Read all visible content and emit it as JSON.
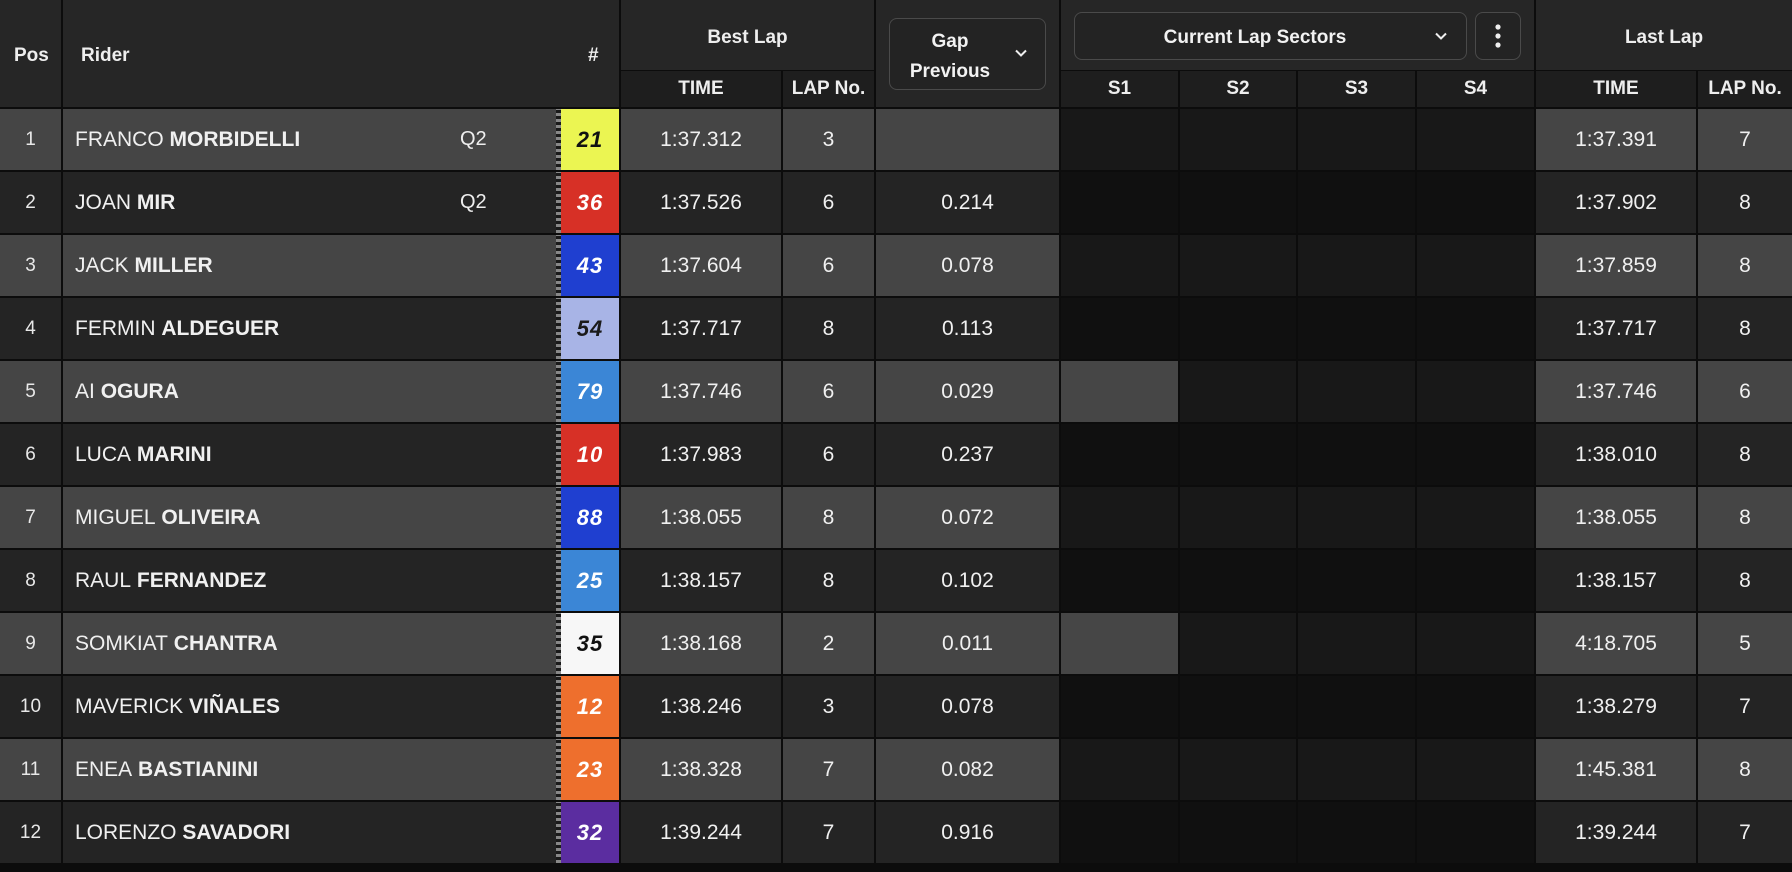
{
  "header": {
    "pos": "Pos",
    "rider": "Rider",
    "number": "#",
    "best_lap": "Best Lap",
    "best_lap_time": "TIME",
    "best_lap_no": "LAP No.",
    "gap_line1": "Gap",
    "gap_line2": "Previous",
    "sectors_dropdown": "Current Lap Sectors",
    "s1": "S1",
    "s2": "S2",
    "s3": "S3",
    "s4": "S4",
    "last_lap": "Last Lap",
    "last_lap_time": "TIME",
    "last_lap_no": "LAP No."
  },
  "icons": {
    "gap_dropdown": "chevron-down-icon",
    "sectors_dropdown": "chevron-down-icon",
    "more_menu": "kebab-menu-icon"
  },
  "colors": {
    "row_light": "#454545",
    "row_dark": "#242424",
    "sector_fill": "#464646"
  },
  "riders": [
    {
      "pos": "1",
      "first": "FRANCO",
      "last": "MORBIDELLI",
      "tag": "Q2",
      "num": "21",
      "num_bg": "#ebf552",
      "num_fg": "#111111",
      "best_time": "1:37.312",
      "best_lap": "3",
      "gap": "",
      "s1": false,
      "last_time": "1:37.391",
      "last_lap": "7"
    },
    {
      "pos": "2",
      "first": "JOAN",
      "last": "MIR",
      "tag": "Q2",
      "num": "36",
      "num_bg": "#d73026",
      "num_fg": "#ffffff",
      "best_time": "1:37.526",
      "best_lap": "6",
      "gap": "0.214",
      "s1": false,
      "last_time": "1:37.902",
      "last_lap": "8"
    },
    {
      "pos": "3",
      "first": "JACK",
      "last": "MILLER",
      "tag": "",
      "num": "43",
      "num_bg": "#1f3fd0",
      "num_fg": "#ffffff",
      "best_time": "1:37.604",
      "best_lap": "6",
      "gap": "0.078",
      "s1": false,
      "last_time": "1:37.859",
      "last_lap": "8"
    },
    {
      "pos": "4",
      "first": "FERMIN",
      "last": "ALDEGUER",
      "tag": "",
      "num": "54",
      "num_bg": "#a8b4e6",
      "num_fg": "#1a1a1a",
      "best_time": "1:37.717",
      "best_lap": "8",
      "gap": "0.113",
      "s1": false,
      "last_time": "1:37.717",
      "last_lap": "8"
    },
    {
      "pos": "5",
      "first": "AI",
      "last": "OGURA",
      "tag": "",
      "num": "79",
      "num_bg": "#3b86d6",
      "num_fg": "#ffffff",
      "best_time": "1:37.746",
      "best_lap": "6",
      "gap": "0.029",
      "s1": true,
      "last_time": "1:37.746",
      "last_lap": "6"
    },
    {
      "pos": "6",
      "first": "LUCA",
      "last": "MARINI",
      "tag": "",
      "num": "10",
      "num_bg": "#d73026",
      "num_fg": "#ffffff",
      "best_time": "1:37.983",
      "best_lap": "6",
      "gap": "0.237",
      "s1": false,
      "last_time": "1:38.010",
      "last_lap": "8"
    },
    {
      "pos": "7",
      "first": "MIGUEL",
      "last": "OLIVEIRA",
      "tag": "",
      "num": "88",
      "num_bg": "#1f3fd0",
      "num_fg": "#ffffff",
      "best_time": "1:38.055",
      "best_lap": "8",
      "gap": "0.072",
      "s1": false,
      "last_time": "1:38.055",
      "last_lap": "8"
    },
    {
      "pos": "8",
      "first": "RAUL",
      "last": "FERNANDEZ",
      "tag": "",
      "num": "25",
      "num_bg": "#3b86d6",
      "num_fg": "#ffffff",
      "best_time": "1:38.157",
      "best_lap": "8",
      "gap": "0.102",
      "s1": false,
      "last_time": "1:38.157",
      "last_lap": "8"
    },
    {
      "pos": "9",
      "first": "SOMKIAT",
      "last": "CHANTRA",
      "tag": "",
      "num": "35",
      "num_bg": "#f7f7f7",
      "num_fg": "#111111",
      "best_time": "1:38.168",
      "best_lap": "2",
      "gap": "0.011",
      "s1": true,
      "last_time": "4:18.705",
      "last_lap": "5"
    },
    {
      "pos": "10",
      "first": "MAVERICK",
      "last": "VIÑALES",
      "tag": "",
      "num": "12",
      "num_bg": "#ee6f2d",
      "num_fg": "#ffffff",
      "best_time": "1:38.246",
      "best_lap": "3",
      "gap": "0.078",
      "s1": false,
      "last_time": "1:38.279",
      "last_lap": "7"
    },
    {
      "pos": "11",
      "first": "ENEA",
      "last": "BASTIANINI",
      "tag": "",
      "num": "23",
      "num_bg": "#ee6f2d",
      "num_fg": "#ffffff",
      "best_time": "1:38.328",
      "best_lap": "7",
      "gap": "0.082",
      "s1": false,
      "last_time": "1:45.381",
      "last_lap": "8"
    },
    {
      "pos": "12",
      "first": "LORENZO",
      "last": "SAVADORI",
      "tag": "",
      "num": "32",
      "num_bg": "#5b2da0",
      "num_fg": "#ffffff",
      "best_time": "1:39.244",
      "best_lap": "7",
      "gap": "0.916",
      "s1": false,
      "last_time": "1:39.244",
      "last_lap": "7"
    }
  ]
}
